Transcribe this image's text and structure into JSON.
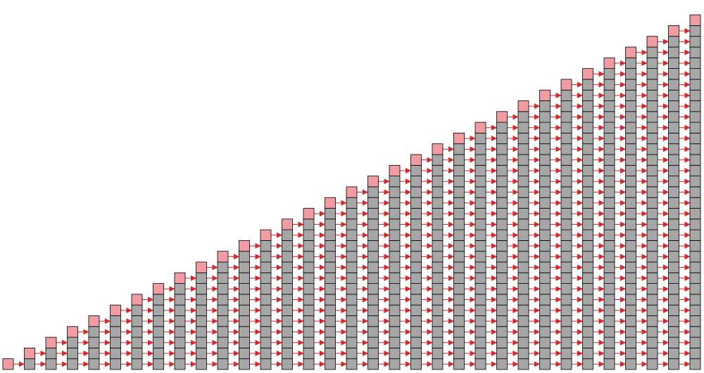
{
  "diagram": {
    "column_count": 33,
    "new_cells_per_column": 1,
    "copy_arrows_between_columns": true,
    "colors": {
      "new_cell_fill": "#f19ca3",
      "old_cell_fill": "#a6a6a6",
      "cell_stroke": "#000000",
      "arrow_color": "#d9262a",
      "background": "#ffffff"
    }
  }
}
